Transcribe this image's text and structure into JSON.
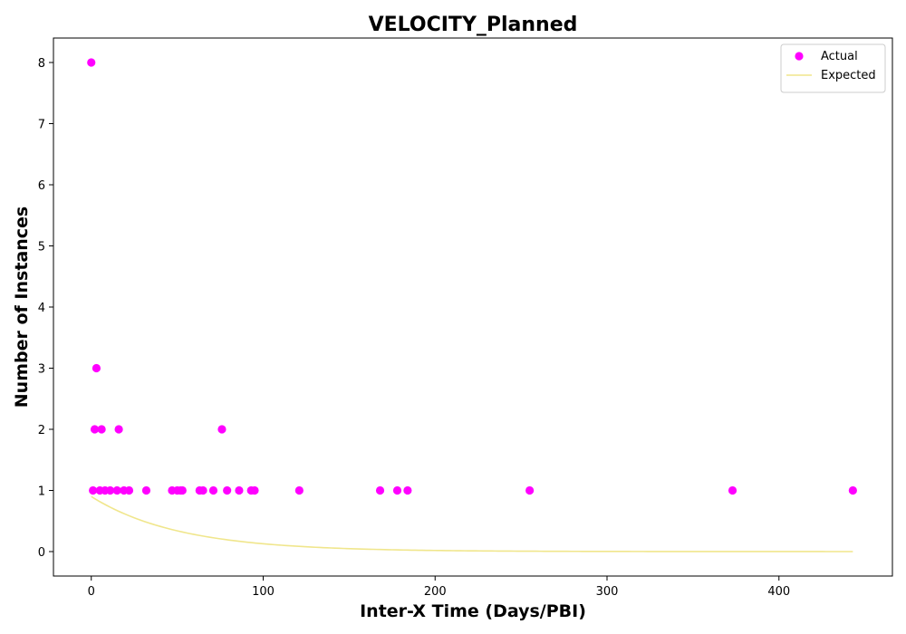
{
  "chart_data": {
    "type": "scatter",
    "title": "VELOCITY_Planned",
    "xlabel": "Inter-X Time (Days/PBI)",
    "ylabel": "Number of Instances",
    "xlim": [
      -22,
      466
    ],
    "ylim": [
      -0.4,
      8.4
    ],
    "xticks": [
      0,
      100,
      200,
      300,
      400
    ],
    "yticks": [
      0,
      1,
      2,
      3,
      4,
      5,
      6,
      7,
      8
    ],
    "grid": false,
    "legend_position": "top-right",
    "series": [
      {
        "name": "Actual",
        "kind": "scatter",
        "color": "#ff00ff",
        "points": [
          [
            0,
            8
          ],
          [
            1,
            1
          ],
          [
            2,
            2
          ],
          [
            3,
            3
          ],
          [
            5,
            1
          ],
          [
            6,
            2
          ],
          [
            8,
            1
          ],
          [
            11,
            1
          ],
          [
            15,
            1
          ],
          [
            16,
            2
          ],
          [
            19,
            1
          ],
          [
            22,
            1
          ],
          [
            32,
            1
          ],
          [
            47,
            1
          ],
          [
            50,
            1
          ],
          [
            52,
            1
          ],
          [
            53,
            1
          ],
          [
            63,
            1
          ],
          [
            65,
            1
          ],
          [
            71,
            1
          ],
          [
            76,
            2
          ],
          [
            79,
            1
          ],
          [
            86,
            1
          ],
          [
            93,
            1
          ],
          [
            95,
            1
          ],
          [
            121,
            1
          ],
          [
            168,
            1
          ],
          [
            178,
            1
          ],
          [
            184,
            1
          ],
          [
            255,
            1
          ],
          [
            373,
            1
          ],
          [
            443,
            1
          ]
        ]
      },
      {
        "name": "Expected",
        "kind": "line",
        "color": "#f0e68c",
        "x_range": [
          0,
          443
        ],
        "start_value": 0.9,
        "decay_per_day": 0.0195
      }
    ]
  }
}
